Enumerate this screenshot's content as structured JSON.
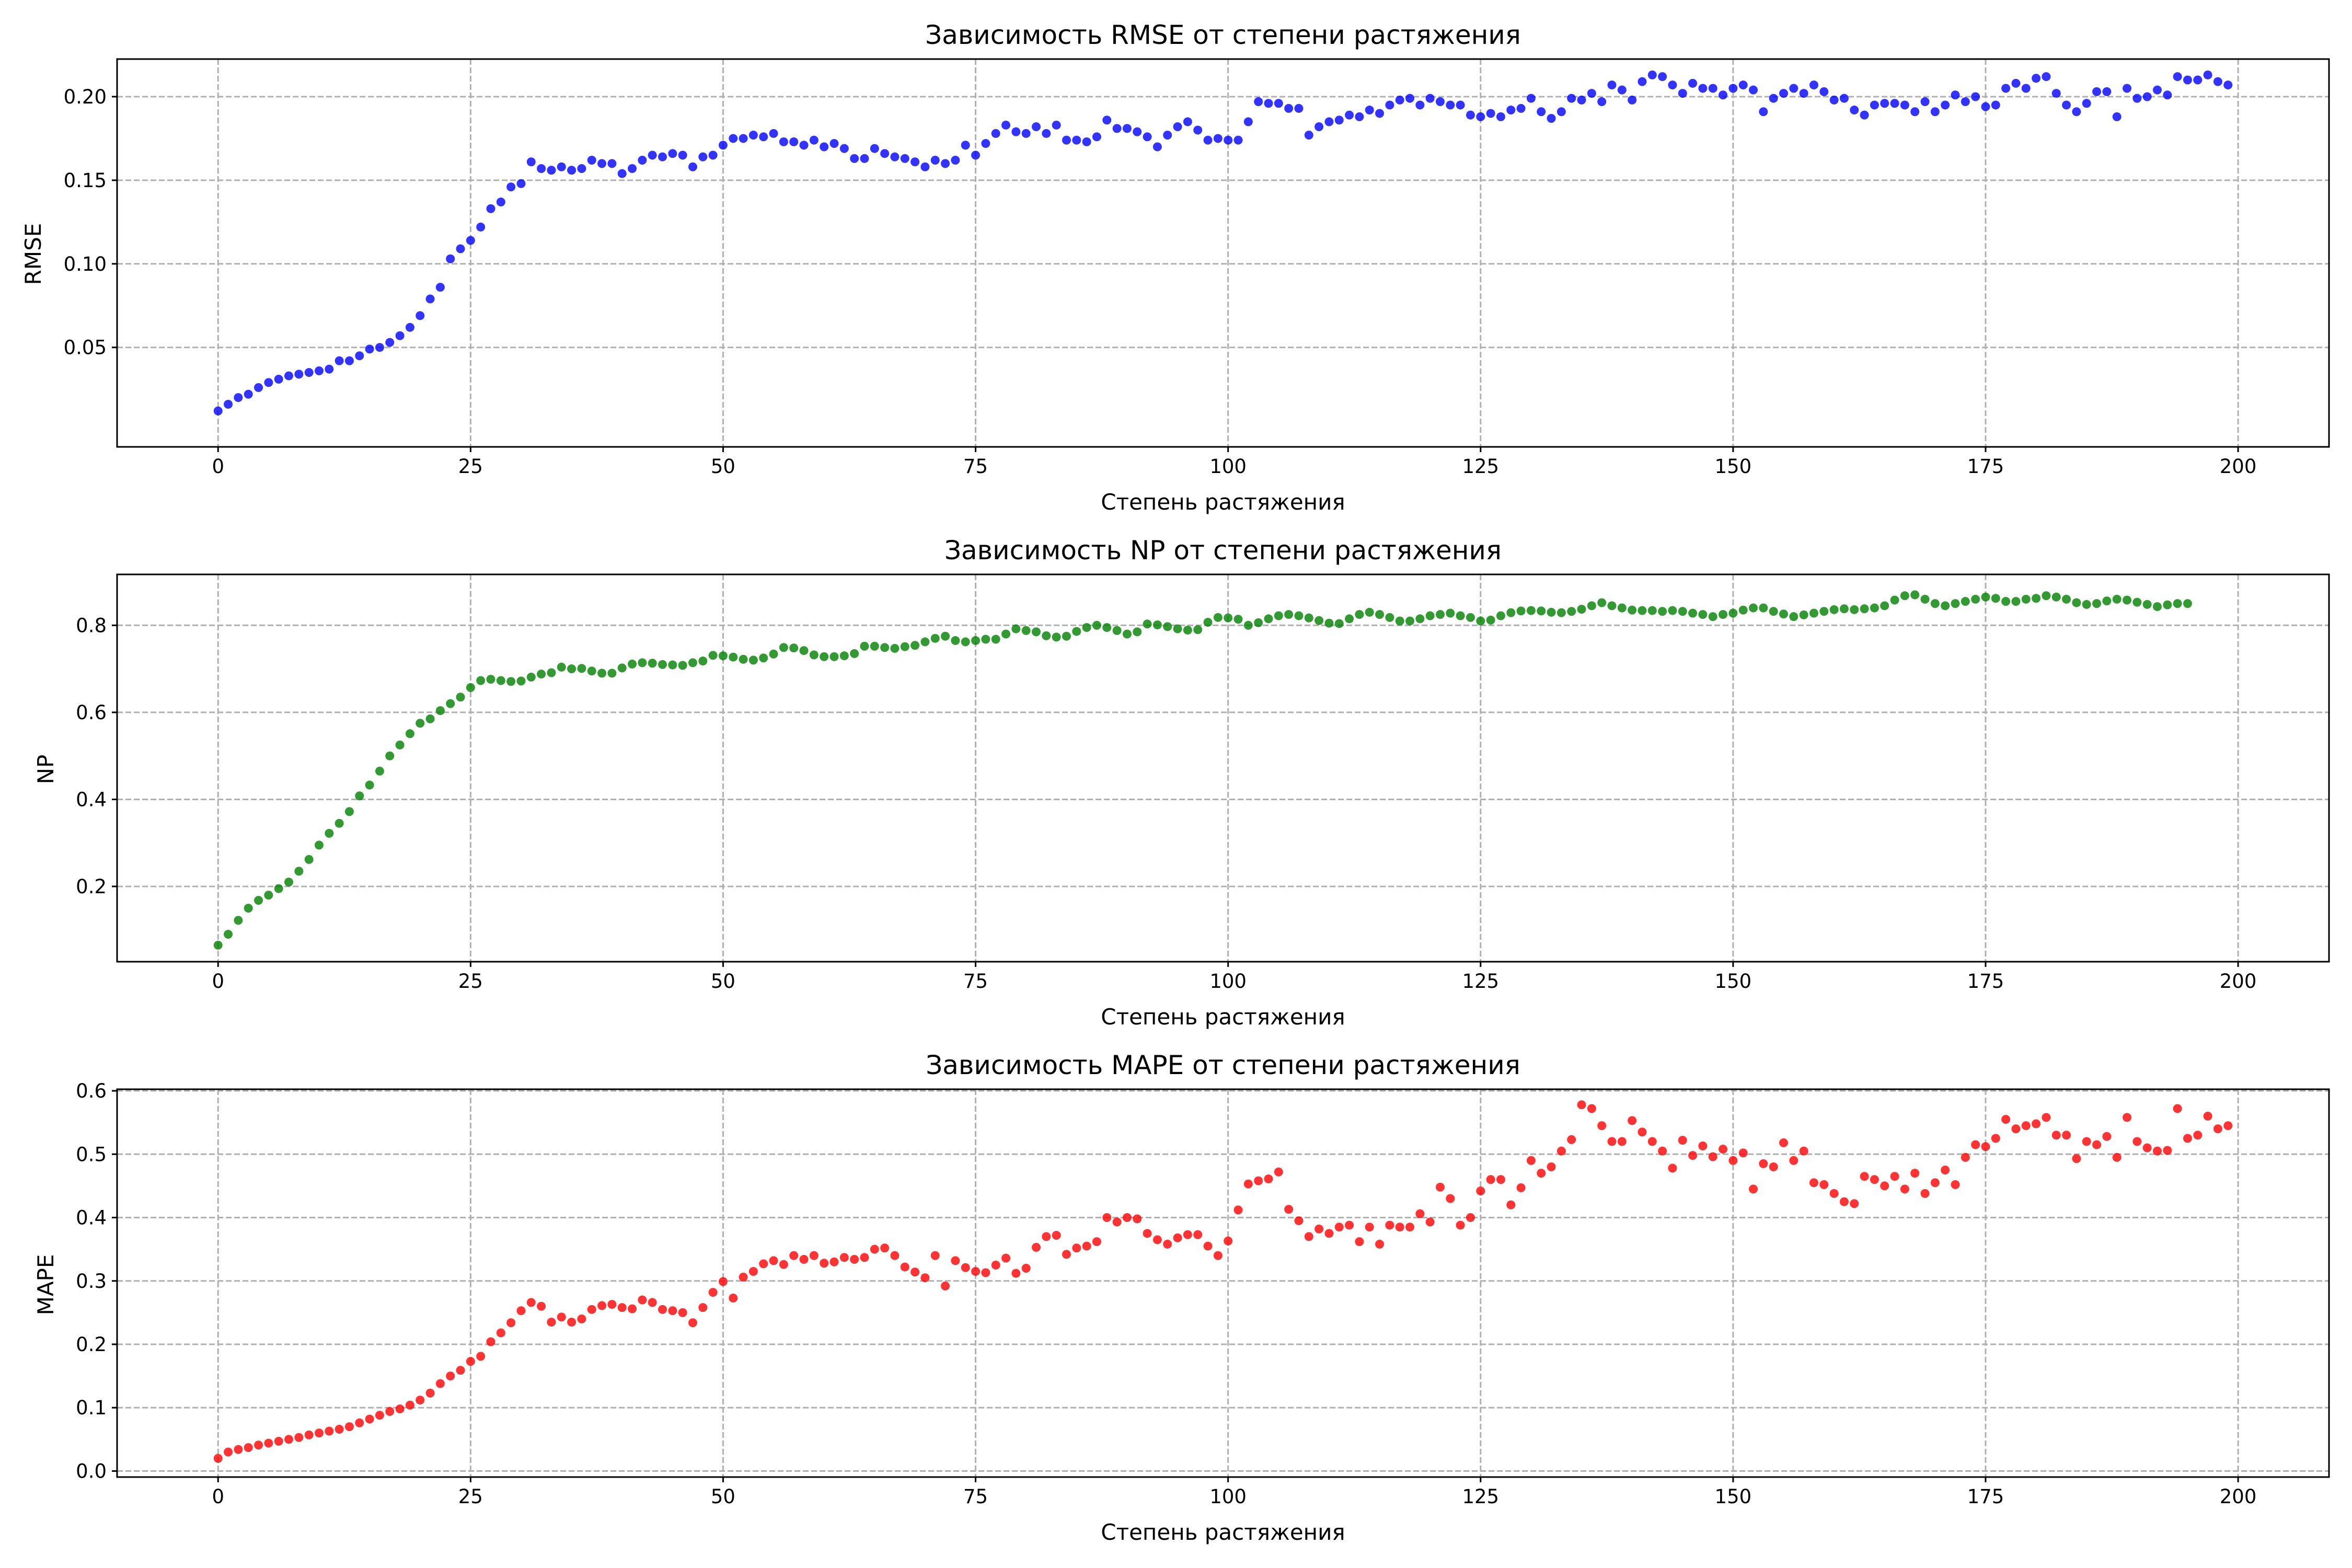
{
  "chart_data": [
    {
      "type": "scatter",
      "title": "Зависимость RMSE от степени растяжения",
      "xlabel": "Степень растяжения",
      "ylabel": "RMSE",
      "xlim": [
        -10,
        209
      ],
      "ylim": [
        -0.0095,
        0.2225
      ],
      "xticks": [
        0,
        25,
        50,
        75,
        100,
        125,
        150,
        175,
        200
      ],
      "yticks": [
        0.05,
        0.1,
        0.15,
        0.2
      ],
      "ytick_labels": [
        "0.05",
        "0.10",
        "0.15",
        "0.20"
      ],
      "grid": true,
      "color": "#0000ff",
      "series": [
        {
          "x_start": 0,
          "values": [
            0.012,
            0.016,
            0.02,
            0.022,
            0.026,
            0.029,
            0.031,
            0.033,
            0.034,
            0.035,
            0.036,
            0.037,
            0.042,
            0.042,
            0.045,
            0.049,
            0.05,
            0.053,
            0.057,
            0.062,
            0.069,
            0.079,
            0.086,
            0.103,
            0.109,
            0.114,
            0.122,
            0.133,
            0.137,
            0.146,
            0.148,
            0.161,
            0.157,
            0.156,
            0.158,
            0.156,
            0.157,
            0.162,
            0.16,
            0.16,
            0.154,
            0.157,
            0.162,
            0.165,
            0.164,
            0.166,
            0.165,
            0.158,
            0.164,
            0.165,
            0.171,
            0.175,
            0.175,
            0.177,
            0.176,
            0.178,
            0.173,
            0.173,
            0.171,
            0.174,
            0.17,
            0.172,
            0.169,
            0.163,
            0.163,
            0.169,
            0.166,
            0.164,
            0.163,
            0.161,
            0.158,
            0.162,
            0.16,
            0.162,
            0.171,
            0.165,
            0.172,
            0.178,
            0.183,
            0.179,
            0.178,
            0.182,
            0.178,
            0.183,
            0.174,
            0.174,
            0.173,
            0.176,
            0.186,
            0.181,
            0.181,
            0.179,
            0.176,
            0.17,
            0.177,
            0.182,
            0.185,
            0.18,
            0.174,
            0.175,
            0.174,
            0.174,
            0.185,
            0.197,
            0.196,
            0.196,
            0.193,
            0.193,
            0.177,
            0.182,
            0.185,
            0.186,
            0.189,
            0.188,
            0.192,
            0.19,
            0.195,
            0.198,
            0.199,
            0.195,
            0.199,
            0.197,
            0.195,
            0.195,
            0.189,
            0.188,
            0.19,
            0.188,
            0.192,
            0.193,
            0.199,
            0.191,
            0.187,
            0.191,
            0.199,
            0.198,
            0.202,
            0.197,
            0.207,
            0.204,
            0.198,
            0.209,
            0.213,
            0.212,
            0.207,
            0.202,
            0.208,
            0.205,
            0.205,
            0.201,
            0.205,
            0.207,
            0.204,
            0.191,
            0.199,
            0.202,
            0.205,
            0.202,
            0.207,
            0.203,
            0.198,
            0.199,
            0.192,
            0.189,
            0.195,
            0.196,
            0.196,
            0.195,
            0.191,
            0.197,
            0.191,
            0.195,
            0.201,
            0.197,
            0.2,
            0.194,
            0.195,
            0.205,
            0.208,
            0.205,
            0.211,
            0.212,
            0.202,
            0.195,
            0.191,
            0.196,
            0.203,
            0.203,
            0.188,
            0.205,
            0.199,
            0.2,
            0.204,
            0.201,
            0.212,
            0.21,
            0.21,
            0.213,
            0.209,
            0.207
          ]
        }
      ]
    },
    {
      "type": "scatter",
      "title": "Зависимость NP от степени растяжения",
      "xlabel": "Степень растяжения",
      "ylabel": "NP",
      "xlim": [
        -10,
        209
      ],
      "ylim": [
        0.027,
        0.917
      ],
      "xticks": [
        0,
        25,
        50,
        75,
        100,
        125,
        150,
        175,
        200
      ],
      "yticks": [
        0.2,
        0.4,
        0.6,
        0.8
      ],
      "ytick_labels": [
        "0.2",
        "0.4",
        "0.6",
        "0.8"
      ],
      "grid": true,
      "color": "#008000",
      "series": [
        {
          "x_start": 0,
          "values": [
            0.065,
            0.09,
            0.122,
            0.15,
            0.168,
            0.18,
            0.195,
            0.21,
            0.235,
            0.262,
            0.295,
            0.322,
            0.345,
            0.372,
            0.408,
            0.433,
            0.465,
            0.5,
            0.525,
            0.551,
            0.575,
            0.585,
            0.604,
            0.62,
            0.635,
            0.657,
            0.673,
            0.676,
            0.673,
            0.671,
            0.672,
            0.681,
            0.688,
            0.691,
            0.704,
            0.7,
            0.701,
            0.695,
            0.69,
            0.69,
            0.702,
            0.711,
            0.714,
            0.713,
            0.71,
            0.709,
            0.708,
            0.714,
            0.718,
            0.731,
            0.73,
            0.727,
            0.722,
            0.72,
            0.725,
            0.734,
            0.749,
            0.748,
            0.742,
            0.732,
            0.728,
            0.728,
            0.73,
            0.735,
            0.752,
            0.752,
            0.749,
            0.747,
            0.751,
            0.754,
            0.762,
            0.77,
            0.775,
            0.765,
            0.762,
            0.765,
            0.768,
            0.768,
            0.78,
            0.792,
            0.788,
            0.785,
            0.776,
            0.773,
            0.775,
            0.786,
            0.795,
            0.8,
            0.795,
            0.788,
            0.78,
            0.785,
            0.803,
            0.801,
            0.797,
            0.792,
            0.789,
            0.79,
            0.807,
            0.818,
            0.817,
            0.814,
            0.8,
            0.806,
            0.815,
            0.822,
            0.825,
            0.822,
            0.817,
            0.811,
            0.805,
            0.804,
            0.815,
            0.825,
            0.83,
            0.825,
            0.818,
            0.81,
            0.81,
            0.815,
            0.822,
            0.825,
            0.828,
            0.822,
            0.818,
            0.81,
            0.812,
            0.822,
            0.829,
            0.833,
            0.834,
            0.833,
            0.83,
            0.829,
            0.832,
            0.837,
            0.845,
            0.852,
            0.845,
            0.84,
            0.835,
            0.834,
            0.834,
            0.832,
            0.834,
            0.832,
            0.828,
            0.825,
            0.82,
            0.825,
            0.828,
            0.835,
            0.84,
            0.84,
            0.832,
            0.826,
            0.82,
            0.824,
            0.828,
            0.832,
            0.836,
            0.838,
            0.836,
            0.838,
            0.84,
            0.845,
            0.858,
            0.868,
            0.87,
            0.86,
            0.85,
            0.845,
            0.85,
            0.855,
            0.86,
            0.865,
            0.862,
            0.855,
            0.855,
            0.86,
            0.862,
            0.868,
            0.865,
            0.86,
            0.852,
            0.848,
            0.85,
            0.856,
            0.86,
            0.858,
            0.853,
            0.848,
            0.843,
            0.847,
            0.85,
            0.85
          ]
        }
      ]
    },
    {
      "type": "scatter",
      "title": "Зависимость MAPE от степени растяжения",
      "xlabel": "Степень растяжения",
      "ylabel": "MAPE",
      "xlim": [
        -10,
        209
      ],
      "ylim": [
        -0.0095,
        0.6025
      ],
      "xticks": [
        0,
        25,
        50,
        75,
        100,
        125,
        150,
        175,
        200
      ],
      "yticks": [
        0.0,
        0.1,
        0.2,
        0.3,
        0.4,
        0.5,
        0.6
      ],
      "ytick_labels": [
        "0.0",
        "0.1",
        "0.2",
        "0.3",
        "0.4",
        "0.5",
        "0.6"
      ],
      "grid": true,
      "color": "#ff0000",
      "series": [
        {
          "x_start": 0,
          "values": [
            0.02,
            0.03,
            0.034,
            0.037,
            0.041,
            0.044,
            0.047,
            0.05,
            0.053,
            0.057,
            0.06,
            0.063,
            0.066,
            0.07,
            0.076,
            0.082,
            0.088,
            0.094,
            0.098,
            0.104,
            0.112,
            0.123,
            0.138,
            0.15,
            0.159,
            0.173,
            0.181,
            0.204,
            0.218,
            0.234,
            0.253,
            0.266,
            0.26,
            0.235,
            0.243,
            0.235,
            0.24,
            0.255,
            0.261,
            0.263,
            0.258,
            0.256,
            0.27,
            0.266,
            0.255,
            0.253,
            0.25,
            0.234,
            0.258,
            0.282,
            0.299,
            0.273,
            0.306,
            0.315,
            0.327,
            0.332,
            0.326,
            0.34,
            0.334,
            0.34,
            0.328,
            0.33,
            0.337,
            0.334,
            0.337,
            0.35,
            0.352,
            0.34,
            0.322,
            0.314,
            0.305,
            0.34,
            0.292,
            0.332,
            0.321,
            0.315,
            0.313,
            0.325,
            0.336,
            0.312,
            0.32,
            0.353,
            0.37,
            0.372,
            0.342,
            0.352,
            0.355,
            0.362,
            0.4,
            0.393,
            0.4,
            0.398,
            0.375,
            0.365,
            0.358,
            0.368,
            0.373,
            0.373,
            0.355,
            0.34,
            0.363,
            0.412,
            0.453,
            0.458,
            0.461,
            0.472,
            0.413,
            0.395,
            0.37,
            0.382,
            0.375,
            0.385,
            0.388,
            0.362,
            0.385,
            0.358,
            0.388,
            0.385,
            0.385,
            0.406,
            0.393,
            0.448,
            0.43,
            0.388,
            0.4,
            0.442,
            0.46,
            0.46,
            0.42,
            0.447,
            0.49,
            0.47,
            0.48,
            0.505,
            0.523,
            0.578,
            0.572,
            0.545,
            0.52,
            0.52,
            0.553,
            0.535,
            0.52,
            0.505,
            0.478,
            0.522,
            0.498,
            0.513,
            0.496,
            0.508,
            0.49,
            0.502,
            0.445,
            0.485,
            0.48,
            0.518,
            0.49,
            0.505,
            0.455,
            0.452,
            0.438,
            0.425,
            0.422,
            0.465,
            0.46,
            0.45,
            0.465,
            0.445,
            0.47,
            0.438,
            0.455,
            0.475,
            0.452,
            0.495,
            0.515,
            0.512,
            0.525,
            0.555,
            0.54,
            0.545,
            0.548,
            0.558,
            0.53,
            0.53,
            0.493,
            0.52,
            0.515,
            0.528,
            0.495,
            0.558,
            0.52,
            0.51,
            0.505,
            0.506,
            0.572,
            0.525,
            0.53,
            0.56,
            0.54,
            0.545
          ]
        }
      ]
    }
  ]
}
